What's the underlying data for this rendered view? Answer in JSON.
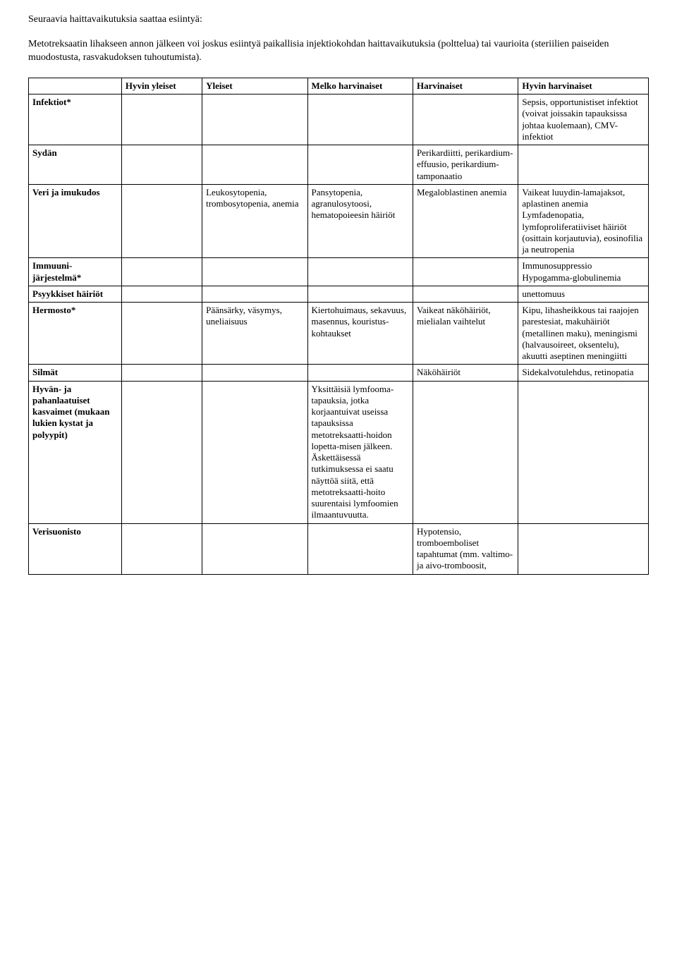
{
  "intro": {
    "heading": "Seuraavia haittavaikutuksia saattaa esiintyä:",
    "paragraph": "Metotreksaatin lihakseen annon jälkeen voi joskus esiintyä paikallisia injektiokohdan haittavaikutuksia (polttelua) tai vaurioita (steriilien paiseiden muodostusta, rasvakudoksen tuhoutumista)."
  },
  "table": {
    "headers": {
      "c1": "",
      "c2": "Hyvin yleiset",
      "c3": "Yleiset",
      "c4": "Melko harvinaiset",
      "c5": "Harvinaiset",
      "c6": "Hyvin harvinaiset"
    },
    "rows": {
      "infektiot": {
        "label": "Infektiot*",
        "c6": "Sepsis, opportunistiset infektiot (voivat joissakin tapauksissa johtaa kuolemaan), CMV-infektiot"
      },
      "sydan": {
        "label": "Sydän",
        "c5": "Perikardiitti, perikardium-effuusio, perikardium-tamponaatio"
      },
      "veri": {
        "label": "Veri ja imukudos",
        "c3": "Leukosytopenia, trombosytopenia, anemia",
        "c4": "Pansytopenia, agranulosytoosi, hematopoieesin häiriöt",
        "c5": "Megaloblastinen anemia",
        "c6": "Vaikeat luuydin-lamajaksot, aplastinen anemia Lymfadenopatia, lymfoproliferatiiviset häiriöt (osittain korjautuvia), eosinofilia ja neutropenia"
      },
      "immuuni": {
        "label": "Immuuni-järjestelmä*",
        "c6": "Immunosuppressio Hypogamma-globulinemia"
      },
      "psyykkiset": {
        "label": "Psyykkiset häiriöt",
        "c6": "unettomuus"
      },
      "hermosto": {
        "label": "Hermosto*",
        "c3": "Päänsärky, väsymys, uneliaisuus",
        "c4": "Kiertohuimaus, sekavuus, masennus, kouristus-kohtaukset",
        "c5": "Vaikeat näköhäiriöt, mielialan vaihtelut",
        "c6": "Kipu, lihasheikkous tai raajojen parestesiat, makuhäiriöt (metallinen maku), meningismi (halvausoireet, oksentelu), akuutti aseptinen meningiitti"
      },
      "silmat": {
        "label": "Silmät",
        "c5": "Näköhäiriöt",
        "c6": "Sidekalvotulehdus, retinopatia"
      },
      "kasvaimet": {
        "label": "Hyvän-  ja pahanlaatuiset kasvaimet (mukaan lukien kystat ja polyypit)",
        "c4": "Yksittäisiä lymfooma-tapauksia, jotka korjaantuivat useissa tapauksissa metotreksaatti-hoidon lopetta-misen jälkeen. Äskettäisessä tutkimuksessa ei saatu näyttöä siitä, että metotreksaatti-hoito suurentaisi lymfoomien ilmaantuvuutta."
      },
      "verisuonisto": {
        "label": "Verisuonisto",
        "c5": "Hypotensio, tromboemboliset tapahtumat (mm. valtimo- ja aivo-tromboosit,"
      }
    }
  }
}
